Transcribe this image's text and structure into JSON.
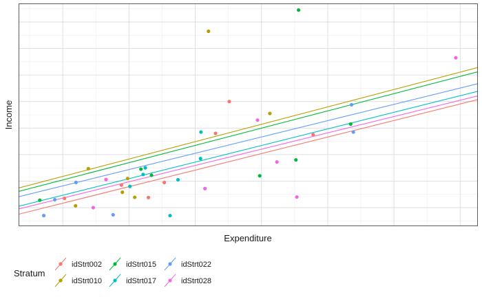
{
  "chart_data": {
    "type": "scatter",
    "title": "",
    "xlabel": "Expenditure",
    "ylabel": "Income",
    "xlim": [
      0,
      10.4
    ],
    "ylim": [
      0,
      8.4
    ],
    "grid": true,
    "legend": {
      "title": "Stratum",
      "position": "bottom-left"
    },
    "series": [
      {
        "name": "idStrt002",
        "color": "#F8766D",
        "points": [
          [
            1.04,
            1.05
          ],
          [
            2.33,
            1.55
          ],
          [
            2.94,
            1.08
          ],
          [
            3.3,
            1.65
          ],
          [
            4.46,
            3.5
          ],
          [
            4.77,
            4.7
          ],
          [
            6.67,
            3.45
          ]
        ],
        "fit": {
          "intercept": 0.45,
          "slope": 0.416
        }
      },
      {
        "name": "idStrt010",
        "color": "#B79F00",
        "points": [
          [
            1.29,
            0.77
          ],
          [
            1.58,
            2.17
          ],
          [
            2.35,
            1.28
          ],
          [
            2.47,
            1.8
          ],
          [
            2.63,
            1.09
          ],
          [
            4.3,
            7.35
          ],
          [
            5.69,
            4.25
          ]
        ],
        "fit": {
          "intercept": 1.44,
          "slope": 0.437
        }
      },
      {
        "name": "idStrt015",
        "color": "#00BA38",
        "points": [
          [
            0.48,
            0.98
          ],
          [
            2.77,
            2.15
          ],
          [
            3.01,
            1.92
          ],
          [
            5.46,
            1.9
          ],
          [
            6.28,
            2.5
          ],
          [
            6.34,
            8.15
          ],
          [
            7.52,
            3.85
          ]
        ],
        "fit": {
          "intercept": 1.31,
          "slope": 0.434
        }
      },
      {
        "name": "idStrt017",
        "color": "#00BFC4",
        "points": [
          [
            2.52,
            1.5
          ],
          [
            2.82,
            1.95
          ],
          [
            2.87,
            2.2
          ],
          [
            3.43,
            0.4
          ],
          [
            3.61,
            1.75
          ],
          [
            4.12,
            2.55
          ],
          [
            4.13,
            3.55
          ]
        ],
        "fit": {
          "intercept": 0.75,
          "slope": 0.417
        }
      },
      {
        "name": "idStrt022",
        "color": "#619CFF",
        "points": [
          [
            0.57,
            0.4
          ],
          [
            0.82,
            1.0
          ],
          [
            1.3,
            1.65
          ],
          [
            2.14,
            0.43
          ],
          [
            7.54,
            4.58
          ],
          [
            7.58,
            3.55
          ]
        ],
        "fit": {
          "intercept": 1.11,
          "slope": 0.41
        }
      },
      {
        "name": "idStrt028",
        "color": "#F564E3",
        "points": [
          [
            1.69,
            0.7
          ],
          [
            1.98,
            1.76
          ],
          [
            4.22,
            1.42
          ],
          [
            5.41,
            4.0
          ],
          [
            5.85,
            2.42
          ],
          [
            6.3,
            1.1
          ],
          [
            9.9,
            6.35
          ]
        ],
        "fit": {
          "intercept": 0.65,
          "slope": 0.41
        }
      }
    ]
  }
}
